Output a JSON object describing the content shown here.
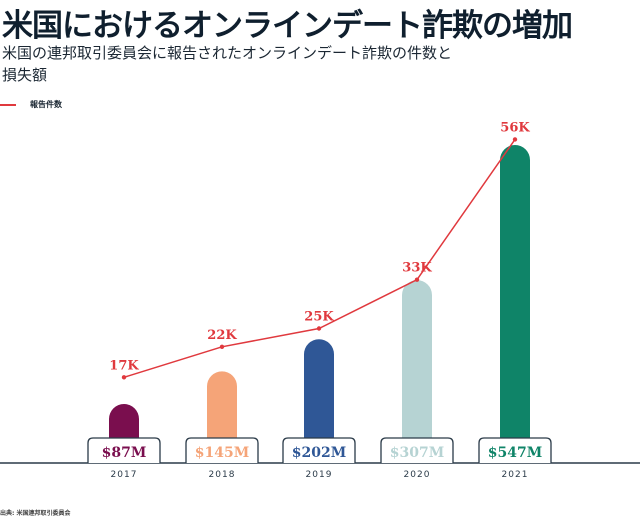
{
  "title": "米国におけるオンラインデート詐欺の増加",
  "subtitle": "米国の連邦取引委員会に報告されたオンラインデート詐欺の件数と損失額",
  "source": "出典: 米国連邦取引委員会",
  "chart_data": {
    "type": "bar",
    "categories": [
      "2017",
      "2018",
      "2019",
      "2020",
      "2021"
    ],
    "series": [
      {
        "name": "損失額",
        "unit": "$M",
        "values": [
          87,
          145,
          202,
          307,
          547
        ],
        "labels": [
          "$87M",
          "$145M",
          "$202M",
          "$307M",
          "$547M"
        ],
        "colors": [
          "#7a0e4e",
          "#f5a478",
          "#2f5796",
          "#b6d3d3",
          "#0f8468"
        ]
      },
      {
        "name": "報告件数",
        "type": "line",
        "unit": "K",
        "values": [
          17,
          22,
          25,
          33,
          56
        ],
        "labels": [
          "17K",
          "22K",
          "25K",
          "33K",
          "56K"
        ],
        "color": "#e0393e"
      }
    ],
    "legend": [
      "報告件数"
    ],
    "legend_position": "top-left"
  }
}
